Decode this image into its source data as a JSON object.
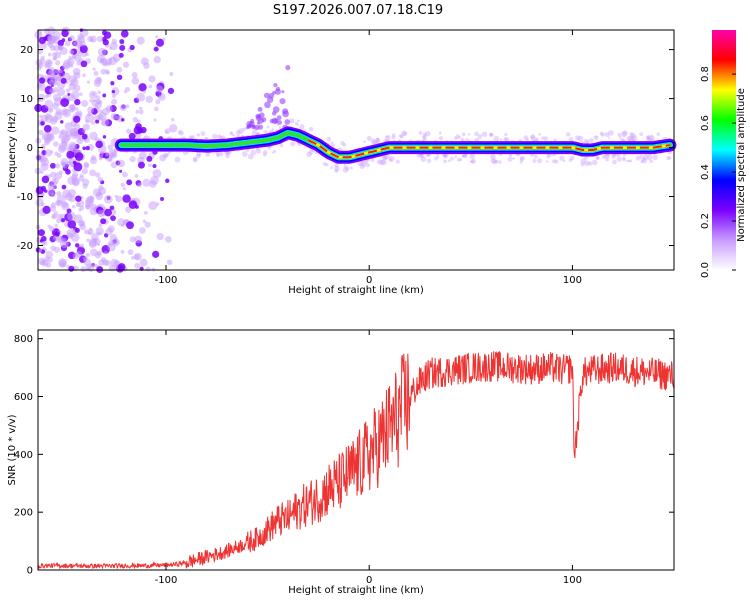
{
  "title": "S197.2026.007.07.18.C19",
  "chart_data": [
    {
      "type": "heatmap",
      "xlabel": "Height of straight line (km)",
      "ylabel": "Frequency (Hz)",
      "xlim": [
        -163,
        150
      ],
      "ylim": [
        -25,
        24
      ],
      "xticks": [
        "-100",
        "0",
        "100"
      ],
      "xtick_values": [
        -100,
        0,
        100
      ],
      "yticks": [
        "20",
        "10",
        "0",
        "-10",
        "-20"
      ],
      "ytick_values": [
        20,
        10,
        0,
        -10,
        -20
      ],
      "ridge": {
        "x": [
          -120,
          -110,
          -100,
          -90,
          -80,
          -70,
          -60,
          -50,
          -45,
          -40,
          -35,
          -30,
          -25,
          -20,
          -15,
          -10,
          -5,
          0,
          5,
          10,
          15,
          20,
          30,
          40,
          50,
          60,
          70,
          80,
          90,
          100,
          105,
          110,
          115,
          120,
          130,
          140,
          148
        ],
        "y": [
          0.5,
          0.5,
          0.5,
          0.5,
          0.3,
          0.5,
          1.0,
          1.5,
          2.0,
          3.0,
          2.5,
          1.5,
          0.5,
          -1.0,
          -2.0,
          -2.0,
          -1.5,
          -1.0,
          -0.5,
          0.0,
          0.0,
          0.0,
          0.0,
          0.0,
          0.0,
          0.0,
          0.0,
          0.0,
          0.0,
          0.0,
          -0.5,
          -0.5,
          0.0,
          0.0,
          0.0,
          0.0,
          0.5
        ]
      },
      "colorbar": {
        "label": "Normalized spectral amplitude",
        "ticks": [
          "0.0",
          "0.2",
          "0.4",
          "0.6",
          "0.8"
        ],
        "tick_values": [
          0.0,
          0.2,
          0.4,
          0.6,
          0.8
        ],
        "range": [
          0,
          0.98
        ],
        "colors": [
          "#ffffff",
          "#c89bff",
          "#7a00ff",
          "#0000ff",
          "#00ffff",
          "#00ff00",
          "#ffff00",
          "#ff0000",
          "#ff00aa"
        ]
      }
    },
    {
      "type": "line",
      "xlabel": "Height of straight line (km)",
      "ylabel": "SNR (10 * v/v)",
      "xlim": [
        -163,
        150
      ],
      "ylim": [
        0,
        830
      ],
      "xticks": [
        "-100",
        "0",
        "100"
      ],
      "xtick_values": [
        -100,
        0,
        100
      ],
      "yticks": [
        "800",
        "600",
        "400",
        "200",
        "0"
      ],
      "ytick_values": [
        800,
        600,
        400,
        200,
        0
      ],
      "color": "#ee3333",
      "series": [
        {
          "name": "SNR",
          "x": [
            -163,
            -150,
            -140,
            -130,
            -120,
            -110,
            -100,
            -95,
            -90,
            -85,
            -80,
            -75,
            -70,
            -65,
            -60,
            -55,
            -50,
            -45,
            -40,
            -35,
            -30,
            -25,
            -20,
            -15,
            -10,
            -5,
            0,
            5,
            10,
            15,
            20,
            25,
            30,
            40,
            50,
            60,
            70,
            80,
            90,
            95,
            100,
            101,
            105,
            110,
            120,
            130,
            140,
            150
          ],
          "y": [
            15,
            15,
            14,
            14,
            15,
            15,
            17,
            20,
            25,
            35,
            45,
            55,
            65,
            80,
            95,
            110,
            140,
            170,
            180,
            210,
            230,
            250,
            280,
            300,
            330,
            360,
            400,
            440,
            490,
            540,
            600,
            650,
            680,
            690,
            700,
            705,
            700,
            695,
            700,
            690,
            700,
            390,
            680,
            690,
            700,
            690,
            680,
            670
          ]
        }
      ]
    }
  ]
}
